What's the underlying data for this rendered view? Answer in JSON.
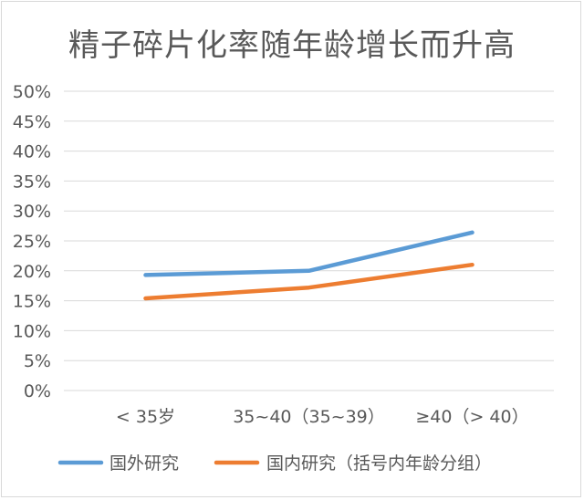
{
  "chart_data": {
    "type": "line",
    "title": "精子碎片化率随年龄增长而升高",
    "xlabel": "",
    "ylabel": "",
    "categories": [
      "< 35岁",
      "35~40（35~39）",
      "≥40（> 40）"
    ],
    "y_ticks": [
      "0%",
      "5%",
      "10%",
      "15%",
      "20%",
      "25%",
      "30%",
      "35%",
      "40%",
      "45%",
      "50%"
    ],
    "ylim": [
      0,
      50
    ],
    "grid": true,
    "legend_position": "bottom",
    "series": [
      {
        "name": "国外研究",
        "color": "#5b9bd5",
        "values": [
          19.3,
          20.0,
          26.4
        ]
      },
      {
        "name": "国内研究（括号内年龄分组）",
        "color": "#ed7d31",
        "values": [
          15.4,
          17.2,
          21.0
        ]
      }
    ]
  }
}
